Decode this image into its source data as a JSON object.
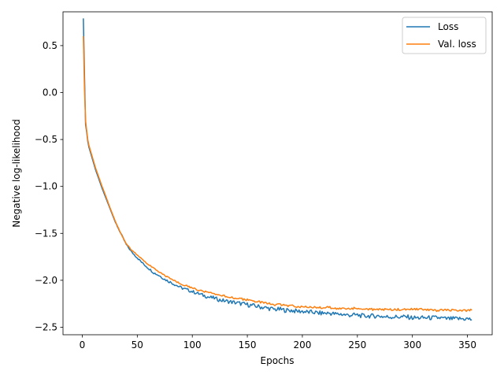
{
  "chart_data": {
    "type": "line",
    "title": "",
    "xlabel": "Epochs",
    "ylabel": "Negative log-likelihood",
    "xlim": [
      -17.5,
      372.5
    ],
    "ylim": [
      -2.58,
      0.86
    ],
    "xticks": [
      0,
      50,
      100,
      150,
      200,
      250,
      300,
      350
    ],
    "yticks": [
      -2.5,
      -2.0,
      -1.5,
      -1.0,
      -0.5,
      0.0,
      0.5
    ],
    "ytick_labels": [
      "−2.5",
      "−2.0",
      "−1.5",
      "−1.0",
      "−0.5",
      "0.0",
      "0.5"
    ],
    "grid": false,
    "legend_position": "top-right",
    "series": [
      {
        "name": "Loss",
        "color": "#1f77b4",
        "x": [
          1,
          2,
          3,
          4,
          5,
          6,
          8,
          10,
          12,
          15,
          18,
          20,
          25,
          30,
          35,
          40,
          45,
          50,
          55,
          60,
          65,
          70,
          75,
          80,
          85,
          90,
          95,
          100,
          105,
          110,
          115,
          120,
          125,
          130,
          135,
          140,
          145,
          150,
          155,
          160,
          165,
          170,
          175,
          180,
          185,
          190,
          195,
          200,
          205,
          210,
          215,
          220,
          225,
          230,
          235,
          240,
          245,
          250,
          255,
          260,
          265,
          270,
          275,
          280,
          285,
          290,
          295,
          300,
          305,
          310,
          315,
          320,
          325,
          330,
          335,
          340,
          345,
          350,
          354
        ],
        "y": [
          0.79,
          0.2,
          -0.34,
          -0.42,
          -0.52,
          -0.58,
          -0.66,
          -0.74,
          -0.82,
          -0.92,
          -1.02,
          -1.08,
          -1.23,
          -1.38,
          -1.5,
          -1.62,
          -1.7,
          -1.76,
          -1.82,
          -1.87,
          -1.92,
          -1.95,
          -1.99,
          -2.02,
          -2.05,
          -2.08,
          -2.1,
          -2.12,
          -2.14,
          -2.16,
          -2.18,
          -2.19,
          -2.21,
          -2.22,
          -2.23,
          -2.24,
          -2.25,
          -2.26,
          -2.27,
          -2.28,
          -2.29,
          -2.3,
          -2.31,
          -2.31,
          -2.32,
          -2.32,
          -2.33,
          -2.33,
          -2.34,
          -2.34,
          -2.35,
          -2.35,
          -2.35,
          -2.36,
          -2.36,
          -2.37,
          -2.37,
          -2.37,
          -2.38,
          -2.38,
          -2.38,
          -2.38,
          -2.39,
          -2.39,
          -2.39,
          -2.39,
          -2.39,
          -2.4,
          -2.4,
          -2.4,
          -2.4,
          -2.4,
          -2.4,
          -2.41,
          -2.41,
          -2.41,
          -2.41,
          -2.41,
          -2.42
        ]
      },
      {
        "name": "Val. loss",
        "color": "#ff7f0e",
        "x": [
          1,
          2,
          3,
          4,
          5,
          6,
          8,
          10,
          12,
          15,
          18,
          20,
          25,
          30,
          35,
          40,
          45,
          50,
          55,
          60,
          65,
          70,
          75,
          80,
          85,
          90,
          95,
          100,
          105,
          110,
          115,
          120,
          125,
          130,
          135,
          140,
          145,
          150,
          155,
          160,
          165,
          170,
          175,
          180,
          185,
          190,
          195,
          200,
          205,
          210,
          215,
          220,
          225,
          230,
          235,
          240,
          245,
          250,
          255,
          260,
          265,
          270,
          275,
          280,
          285,
          290,
          295,
          300,
          305,
          310,
          315,
          320,
          325,
          330,
          335,
          340,
          345,
          350,
          354
        ],
        "y": [
          0.6,
          0.05,
          -0.3,
          -0.4,
          -0.5,
          -0.56,
          -0.64,
          -0.72,
          -0.8,
          -0.9,
          -1.0,
          -1.06,
          -1.22,
          -1.37,
          -1.5,
          -1.61,
          -1.68,
          -1.73,
          -1.78,
          -1.83,
          -1.87,
          -1.91,
          -1.95,
          -1.98,
          -2.01,
          -2.04,
          -2.06,
          -2.08,
          -2.1,
          -2.12,
          -2.13,
          -2.15,
          -2.16,
          -2.17,
          -2.18,
          -2.19,
          -2.2,
          -2.21,
          -2.22,
          -2.23,
          -2.24,
          -2.25,
          -2.26,
          -2.26,
          -2.27,
          -2.27,
          -2.28,
          -2.28,
          -2.28,
          -2.29,
          -2.29,
          -2.29,
          -2.29,
          -2.3,
          -2.3,
          -2.3,
          -2.3,
          -2.3,
          -2.3,
          -2.31,
          -2.31,
          -2.31,
          -2.31,
          -2.31,
          -2.31,
          -2.31,
          -2.31,
          -2.31,
          -2.31,
          -2.31,
          -2.32,
          -2.32,
          -2.32,
          -2.32,
          -2.32,
          -2.32,
          -2.32,
          -2.32,
          -2.32
        ]
      }
    ]
  }
}
